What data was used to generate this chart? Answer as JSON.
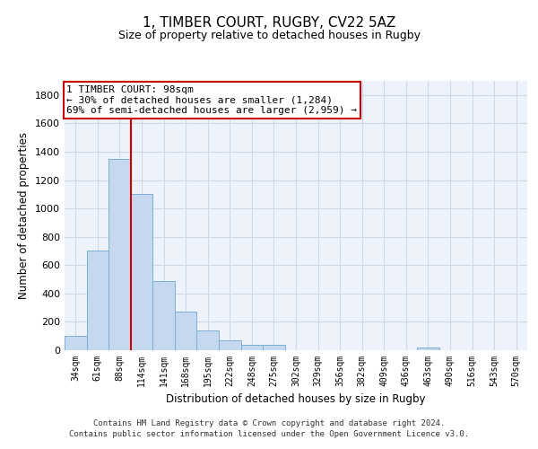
{
  "title_line1": "1, TIMBER COURT, RUGBY, CV22 5AZ",
  "title_line2": "Size of property relative to detached houses in Rugby",
  "xlabel": "Distribution of detached houses by size in Rugby",
  "ylabel": "Number of detached properties",
  "footer_line1": "Contains HM Land Registry data © Crown copyright and database right 2024.",
  "footer_line2": "Contains public sector information licensed under the Open Government Licence v3.0.",
  "categories": [
    "34sqm",
    "61sqm",
    "88sqm",
    "114sqm",
    "141sqm",
    "168sqm",
    "195sqm",
    "222sqm",
    "248sqm",
    "275sqm",
    "302sqm",
    "329sqm",
    "356sqm",
    "382sqm",
    "409sqm",
    "436sqm",
    "463sqm",
    "490sqm",
    "516sqm",
    "543sqm",
    "570sqm"
  ],
  "values": [
    100,
    700,
    1350,
    1100,
    490,
    270,
    140,
    70,
    35,
    35,
    0,
    0,
    0,
    0,
    0,
    0,
    20,
    0,
    0,
    0,
    0
  ],
  "bar_color": "#c5d8ef",
  "bar_edge_color": "#7aafd4",
  "grid_color": "#d0d8e8",
  "background_color": "#eef2fa",
  "vline_color": "#cc0000",
  "vline_x_index": 2.5,
  "annotation_text_line1": "1 TIMBER COURT: 98sqm",
  "annotation_text_line2": "← 30% of detached houses are smaller (1,284)",
  "annotation_text_line3": "69% of semi-detached houses are larger (2,959) →",
  "annotation_box_color": "#cc0000",
  "ylim": [
    0,
    1900
  ],
  "yticks": [
    0,
    200,
    400,
    600,
    800,
    1000,
    1200,
    1400,
    1600,
    1800
  ]
}
